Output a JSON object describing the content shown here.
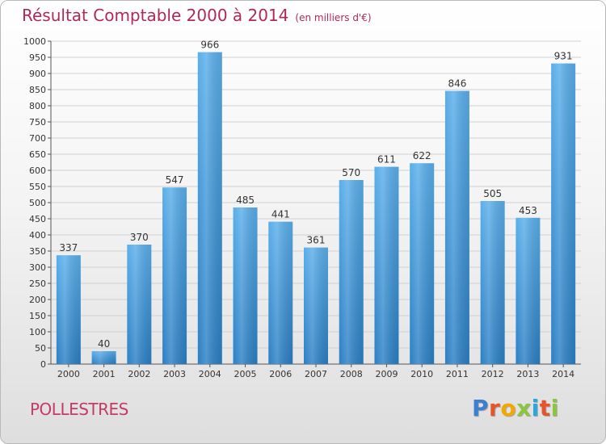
{
  "title": "Résultat Comptable 2000 à 2014",
  "subtitle": "(en milliers d'€)",
  "place": "POLLESTRES",
  "logo": {
    "letters": [
      "P",
      "r",
      "o",
      "x",
      "i",
      "t",
      "i"
    ],
    "colors": [
      "#3a7fd0",
      "#e8542a",
      "#f2a800",
      "#8bc63f",
      "#2fa6d9",
      "#e8542a",
      "#8bc63f"
    ]
  },
  "colors": {
    "bar_top": "#5aaeea",
    "bar_bottom": "#2b7fc4",
    "title": "#b0285a",
    "grid": "#d0d0d0"
  },
  "chart_data": {
    "type": "bar",
    "title": "Résultat Comptable 2000 à 2014",
    "subtitle": "(en milliers d'€)",
    "categories": [
      "2000",
      "2001",
      "2002",
      "2003",
      "2004",
      "2005",
      "2006",
      "2007",
      "2008",
      "2009",
      "2010",
      "2011",
      "2012",
      "2013",
      "2014"
    ],
    "values": [
      337,
      40,
      370,
      547,
      966,
      485,
      441,
      361,
      570,
      611,
      622,
      846,
      505,
      453,
      931
    ],
    "ylim": [
      0,
      1000
    ],
    "ytick_step": 50,
    "grid": true
  }
}
